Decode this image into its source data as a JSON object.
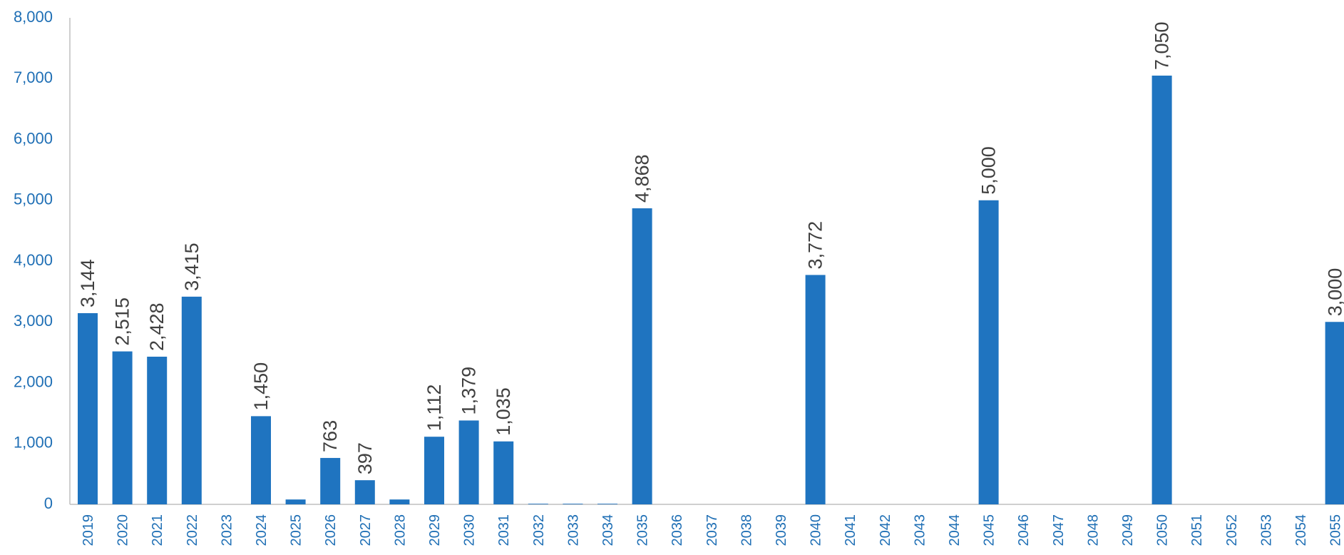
{
  "chart_data": {
    "type": "bar",
    "title": "",
    "xlabel": "",
    "ylabel": "",
    "ylim": [
      0,
      8000
    ],
    "yticks": [
      "0",
      "1,000",
      "2,000",
      "3,000",
      "4,000",
      "5,000",
      "6,000",
      "7,000",
      "8,000"
    ],
    "grid": false,
    "legend": "none",
    "colors": {
      "bar": "#1f74c0",
      "axis_text": "#1f6fb5",
      "data_label": "#404040",
      "axis_line": "#bfbfbf"
    },
    "categories": [
      "2019",
      "2020",
      "2021",
      "2022",
      "2023",
      "2024",
      "2025",
      "2026",
      "2027",
      "2028",
      "2029",
      "2030",
      "2031",
      "2032",
      "2033",
      "2034",
      "2035",
      "2036",
      "2037",
      "2038",
      "2039",
      "2040",
      "2041",
      "2042",
      "2043",
      "2044",
      "2045",
      "2046",
      "2047",
      "2048",
      "2049",
      "2050",
      "2051",
      "2052",
      "2053",
      "2054",
      "2055"
    ],
    "values": [
      3144,
      2515,
      2428,
      3415,
      0,
      1450,
      80,
      763,
      397,
      80,
      1112,
      1379,
      1035,
      10,
      10,
      10,
      4868,
      0,
      0,
      0,
      0,
      3772,
      0,
      0,
      0,
      0,
      5000,
      0,
      0,
      0,
      0,
      7050,
      0,
      0,
      0,
      0,
      3000
    ],
    "data_labels": [
      "3,144",
      "2,515",
      "2,428",
      "3,415",
      "",
      "1,450",
      "",
      "763",
      "397",
      "",
      "1,112",
      "1,379",
      "1,035",
      "",
      "",
      "",
      "4,868",
      "",
      "",
      "",
      "",
      "3,772",
      "",
      "",
      "",
      "",
      "5,000",
      "",
      "",
      "",
      "",
      "7,050",
      "",
      "",
      "",
      "",
      "3,000"
    ]
  }
}
